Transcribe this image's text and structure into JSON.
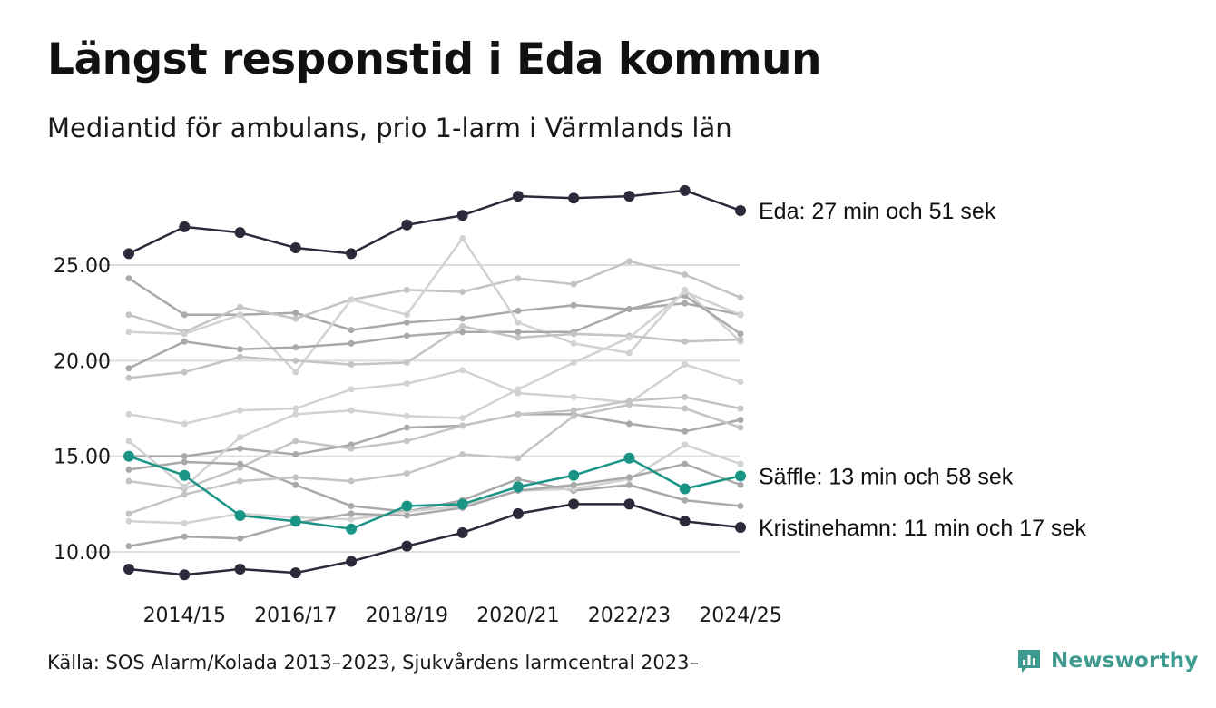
{
  "header": {
    "title": "Längst responstid i Eda kommun",
    "subtitle": "Mediantid för ambulans, prio 1-larm i Värmlands län"
  },
  "footer": {
    "source": "Källa: SOS Alarm/Kolada 2013–2023, Sjukvårdens larmcentral 2023–",
    "brand": "Newsworthy",
    "brand_icon": "newsworthy-logo-icon"
  },
  "colors": {
    "highlight": "#2b2a3a",
    "focus": "#1a9485",
    "background_series": [
      "#a9a9a9",
      "#c4c4c4",
      "#d2d2d2"
    ],
    "grid": "#dddddd"
  },
  "chart_data": {
    "type": "line",
    "title": "Längst responstid i Eda kommun",
    "subtitle": "Mediantid för ambulans, prio 1-larm i Värmlands län",
    "xlabel": "",
    "ylabel": "",
    "x": [
      "2013/14",
      "2014/15",
      "2015/16",
      "2016/17",
      "2017/18",
      "2018/19",
      "2019/20",
      "2020/21",
      "2021/22",
      "2022/23",
      "2023/24",
      "2024/25"
    ],
    "x_tick_labels": [
      "2014/15",
      "2016/17",
      "2018/19",
      "2020/21",
      "2022/23",
      "2024/25"
    ],
    "y_ticks": [
      10,
      15,
      20,
      25
    ],
    "y_tick_labels": [
      "10.00",
      "15.00",
      "20.00",
      "25.00"
    ],
    "ylim": [
      8.5,
      29.2
    ],
    "grid": true,
    "series": [
      {
        "name": "Eda",
        "role": "highlight",
        "label": "Eda: 27 min och 51 sek",
        "values": [
          25.6,
          27.0,
          26.7,
          25.9,
          25.6,
          27.1,
          27.6,
          28.6,
          28.5,
          28.6,
          28.9,
          27.85
        ]
      },
      {
        "name": "Säffle",
        "role": "focus",
        "label": "Säffle: 13 min och 58 sek",
        "values": [
          15.0,
          14.0,
          11.9,
          11.6,
          11.2,
          12.4,
          12.5,
          13.4,
          14.0,
          14.9,
          13.3,
          13.97
        ]
      },
      {
        "name": "Kristinehamn",
        "role": "highlight",
        "label": "Kristinehamn: 11 min och 17 sek",
        "values": [
          9.1,
          8.8,
          9.1,
          8.9,
          9.5,
          10.3,
          11.0,
          12.0,
          12.5,
          12.5,
          11.6,
          11.28
        ]
      },
      {
        "name": "",
        "role": "background",
        "values": [
          24.3,
          22.4,
          22.4,
          22.5,
          21.6,
          22.0,
          22.2,
          22.6,
          22.9,
          22.7,
          23.0,
          22.4
        ]
      },
      {
        "name": "",
        "role": "background",
        "values": [
          22.4,
          21.5,
          22.8,
          22.2,
          23.2,
          23.7,
          23.6,
          24.3,
          24.0,
          25.2,
          24.5,
          23.3
        ]
      },
      {
        "name": "",
        "role": "background",
        "values": [
          21.5,
          21.4,
          22.4,
          19.4,
          23.2,
          22.4,
          26.4,
          22.0,
          20.9,
          20.4,
          23.7,
          21.0
        ]
      },
      {
        "name": "",
        "role": "background",
        "values": [
          19.6,
          21.0,
          20.6,
          20.7,
          20.9,
          21.3,
          21.5,
          21.5,
          21.5,
          22.7,
          23.4,
          21.4
        ]
      },
      {
        "name": "",
        "role": "background",
        "values": [
          19.1,
          19.4,
          20.2,
          20.0,
          19.8,
          19.9,
          21.8,
          21.2,
          21.4,
          21.3,
          21.0,
          21.1
        ]
      },
      {
        "name": "",
        "role": "background",
        "values": [
          17.2,
          16.7,
          17.4,
          17.5,
          18.5,
          18.8,
          19.5,
          18.3,
          18.1,
          17.8,
          19.8,
          18.9
        ]
      },
      {
        "name": "",
        "role": "background",
        "values": [
          15.0,
          15.0,
          15.4,
          15.1,
          15.6,
          16.5,
          16.6,
          17.2,
          17.2,
          16.7,
          16.3,
          16.9
        ]
      },
      {
        "name": "",
        "role": "background",
        "values": [
          13.7,
          13.3,
          14.4,
          15.8,
          15.4,
          15.8,
          16.6,
          17.2,
          17.4,
          17.9,
          18.1,
          17.5
        ]
      },
      {
        "name": "",
        "role": "background",
        "values": [
          15.8,
          13.4,
          16.0,
          17.2,
          17.4,
          17.1,
          17.0,
          18.5,
          19.9,
          21.2,
          23.6,
          22.4
        ]
      },
      {
        "name": "",
        "role": "background",
        "values": [
          14.3,
          14.7,
          14.6,
          13.5,
          12.4,
          12.1,
          12.7,
          13.8,
          13.2,
          13.5,
          12.7,
          12.4
        ]
      },
      {
        "name": "",
        "role": "background",
        "values": [
          12.0,
          13.0,
          13.7,
          13.9,
          13.7,
          14.1,
          15.1,
          14.9,
          17.1,
          17.7,
          17.5,
          16.5
        ]
      },
      {
        "name": "",
        "role": "background",
        "values": [
          11.6,
          11.5,
          12.0,
          11.8,
          11.7,
          12.1,
          12.4,
          13.2,
          13.3,
          13.8,
          15.6,
          14.6
        ]
      },
      {
        "name": "",
        "role": "background",
        "values": [
          10.3,
          10.8,
          10.7,
          11.5,
          12.0,
          11.9,
          12.3,
          13.2,
          13.5,
          13.9,
          14.6,
          13.5
        ]
      }
    ]
  }
}
